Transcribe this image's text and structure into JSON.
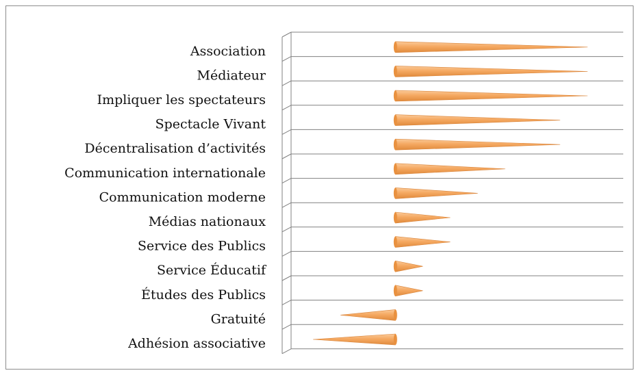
{
  "chart_data": {
    "type": "bar",
    "orientation": "horizontal",
    "categories": [
      "Association",
      "Médiateur",
      "Impliquer les spectateurs",
      "Spectacle Vivant",
      "Décentralisation d’activités",
      "Communication internationale",
      "Communication moderne",
      "Médias nationaux",
      "Service des Publics",
      "Service Éducatif",
      "Études des Publics",
      "Gratuité",
      "Adhésion associative"
    ],
    "values": [
      7,
      7,
      7,
      6,
      6,
      4,
      3,
      2,
      2,
      1,
      1,
      -2,
      -3
    ],
    "color": "#f5a962",
    "xlim": [
      -3.8,
      8.3
    ],
    "grid": true
  }
}
